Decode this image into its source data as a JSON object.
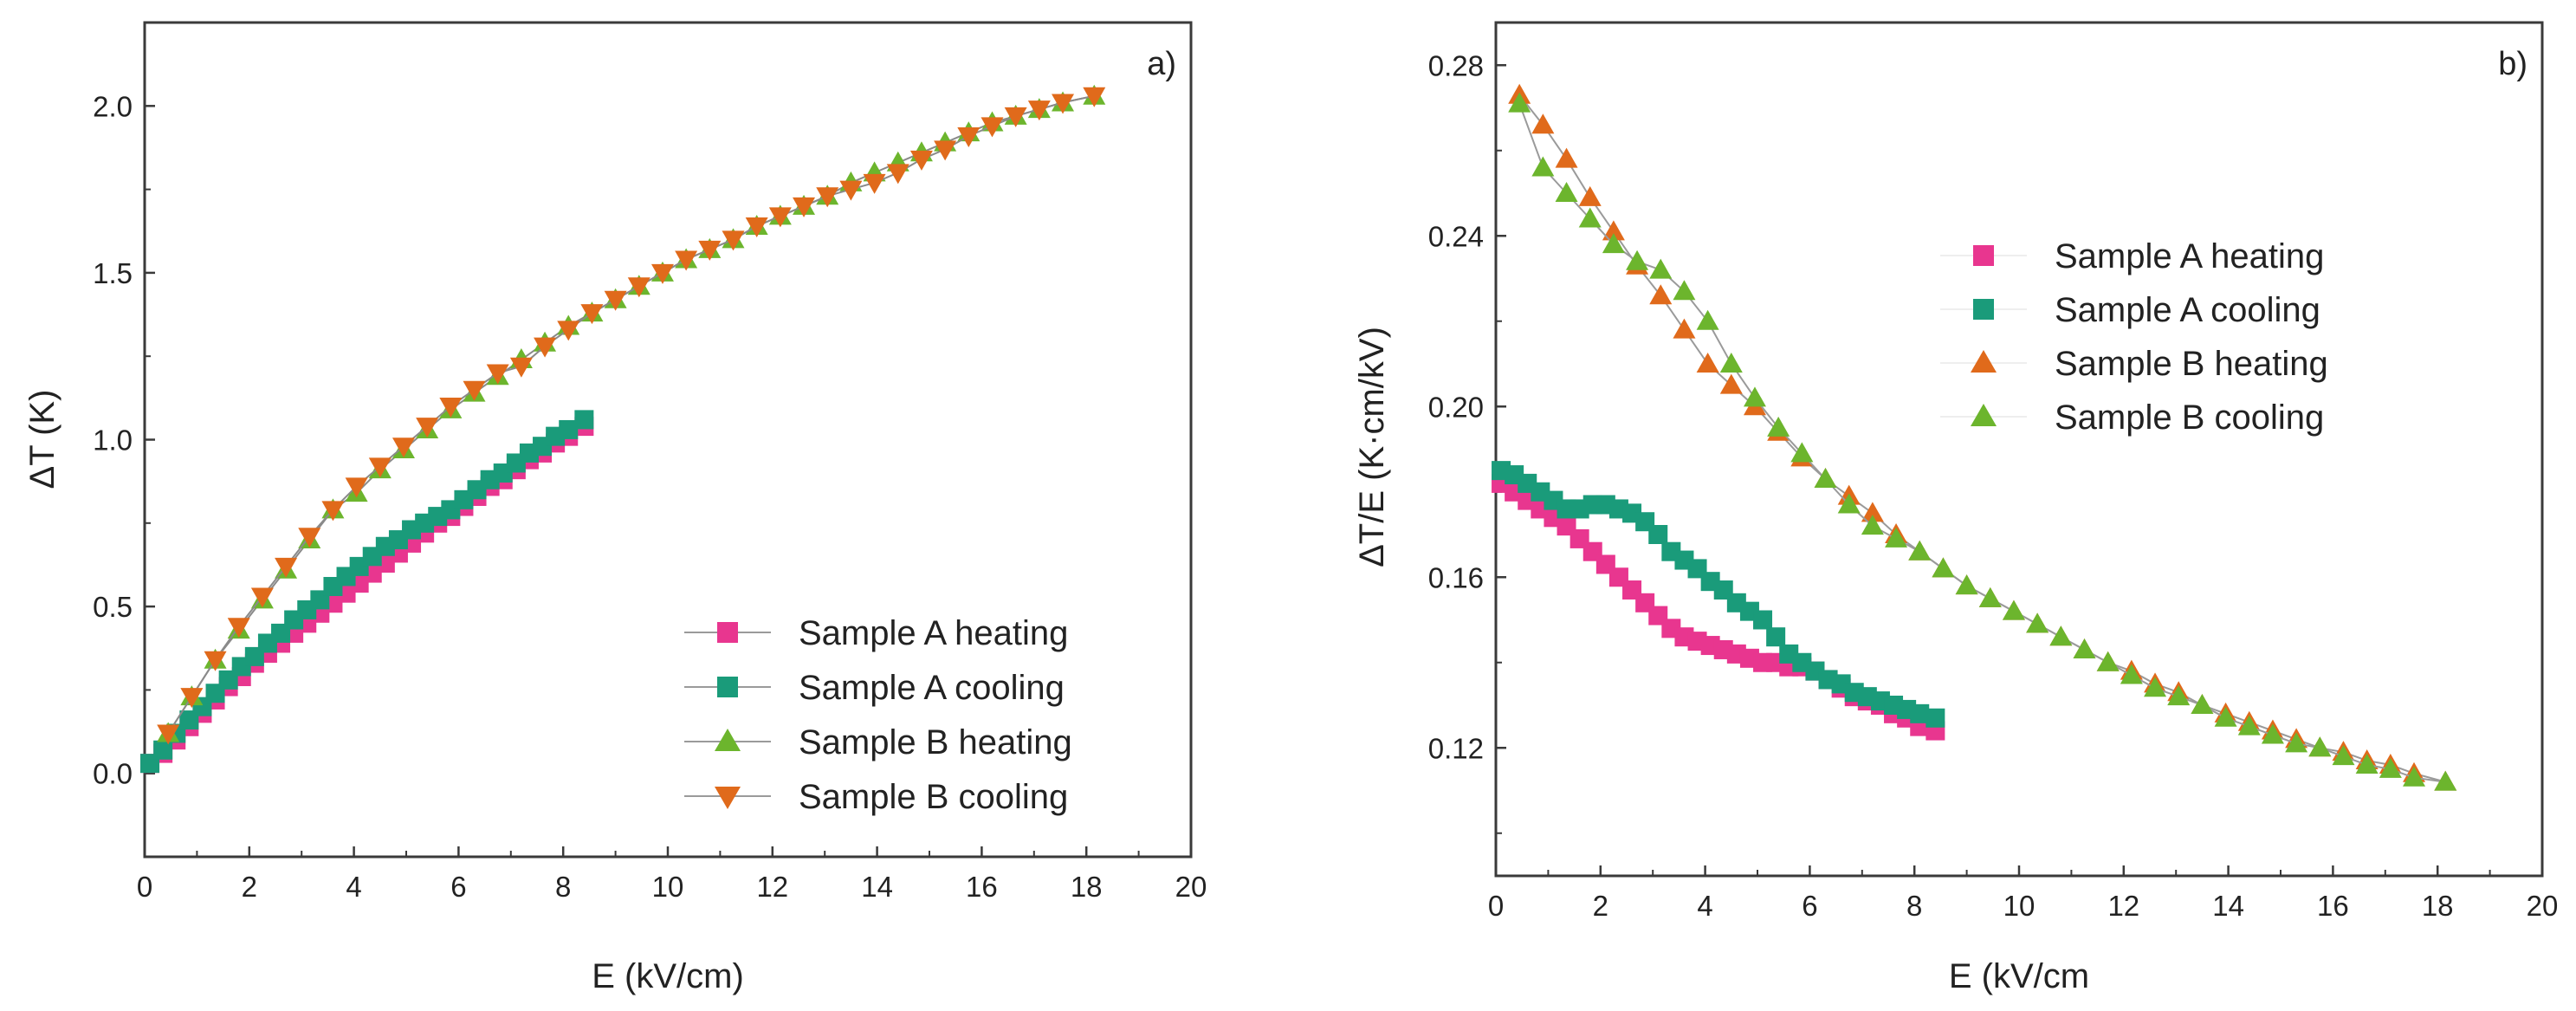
{
  "chart_data": [
    {
      "type": "scatter",
      "panel_label": "a)",
      "xlabel": "E (kV/cm)",
      "ylabel": "ΔT (K)",
      "xlim": [
        0,
        20
      ],
      "ylim": [
        -0.25,
        2.25
      ],
      "xticks": [
        "0",
        "2",
        "4",
        "6",
        "8",
        "10",
        "12",
        "14",
        "16",
        "18",
        "20"
      ],
      "yticks": [
        "0.0",
        "0.5",
        "1.0",
        "1.5",
        "2.0"
      ],
      "legend_position": "bottom-right",
      "series": [
        {
          "name": "Sample A heating",
          "color": "#e8368f",
          "marker": "square",
          "x": [
            0.1,
            0.35,
            0.6,
            0.85,
            1.1,
            1.35,
            1.6,
            1.85,
            2.1,
            2.35,
            2.6,
            2.85,
            3.1,
            3.35,
            3.6,
            3.85,
            4.1,
            4.35,
            4.6,
            4.85,
            5.1,
            5.35,
            5.6,
            5.85,
            6.1,
            6.35,
            6.6,
            6.85,
            7.1,
            7.35,
            7.6,
            7.85,
            8.1,
            8.4
          ],
          "y": [
            0.03,
            0.06,
            0.1,
            0.14,
            0.18,
            0.22,
            0.26,
            0.29,
            0.33,
            0.36,
            0.39,
            0.42,
            0.45,
            0.48,
            0.51,
            0.54,
            0.57,
            0.6,
            0.63,
            0.66,
            0.69,
            0.72,
            0.75,
            0.77,
            0.8,
            0.83,
            0.86,
            0.88,
            0.91,
            0.94,
            0.96,
            0.99,
            1.01,
            1.04
          ]
        },
        {
          "name": "Sample A cooling",
          "color": "#1a9b7a",
          "marker": "square",
          "x": [
            0.1,
            0.35,
            0.6,
            0.85,
            1.1,
            1.35,
            1.6,
            1.85,
            2.1,
            2.35,
            2.6,
            2.85,
            3.1,
            3.35,
            3.6,
            3.85,
            4.1,
            4.35,
            4.6,
            4.85,
            5.1,
            5.35,
            5.6,
            5.85,
            6.1,
            6.35,
            6.6,
            6.85,
            7.1,
            7.35,
            7.6,
            7.85,
            8.1,
            8.4
          ],
          "y": [
            0.03,
            0.07,
            0.12,
            0.16,
            0.2,
            0.24,
            0.28,
            0.32,
            0.35,
            0.39,
            0.42,
            0.46,
            0.49,
            0.52,
            0.56,
            0.59,
            0.62,
            0.65,
            0.68,
            0.7,
            0.73,
            0.75,
            0.77,
            0.79,
            0.82,
            0.85,
            0.88,
            0.9,
            0.93,
            0.96,
            0.98,
            1.01,
            1.03,
            1.06
          ]
        },
        {
          "name": "Sample B heating",
          "color": "#6cb52d",
          "marker": "triangle-up",
          "x": [
            0.45,
            0.9,
            1.35,
            1.8,
            2.25,
            2.7,
            3.15,
            3.6,
            4.05,
            4.5,
            4.95,
            5.4,
            5.85,
            6.3,
            6.75,
            7.2,
            7.65,
            8.1,
            8.55,
            9.0,
            9.45,
            9.9,
            10.35,
            10.8,
            11.25,
            11.7,
            12.15,
            12.6,
            13.05,
            13.5,
            13.95,
            14.4,
            14.85,
            15.3,
            15.75,
            16.2,
            16.65,
            17.1,
            17.55,
            18.15
          ],
          "y": [
            0.12,
            0.23,
            0.34,
            0.43,
            0.52,
            0.61,
            0.7,
            0.79,
            0.84,
            0.91,
            0.97,
            1.03,
            1.09,
            1.14,
            1.19,
            1.24,
            1.29,
            1.34,
            1.38,
            1.42,
            1.46,
            1.5,
            1.54,
            1.57,
            1.6,
            1.64,
            1.67,
            1.7,
            1.73,
            1.77,
            1.8,
            1.83,
            1.86,
            1.89,
            1.92,
            1.95,
            1.97,
            1.99,
            2.01,
            2.03
          ]
        },
        {
          "name": "Sample B cooling",
          "color": "#e06a1b",
          "marker": "triangle-down",
          "x": [
            0.45,
            0.9,
            1.35,
            1.8,
            2.25,
            2.7,
            3.15,
            3.6,
            4.05,
            4.5,
            4.95,
            5.4,
            5.85,
            6.3,
            6.75,
            7.2,
            7.65,
            8.1,
            8.55,
            9.0,
            9.45,
            9.9,
            10.35,
            10.8,
            11.25,
            11.7,
            12.15,
            12.6,
            13.05,
            13.5,
            13.95,
            14.4,
            14.85,
            15.3,
            15.75,
            16.2,
            16.65,
            17.1,
            17.55,
            18.15
          ],
          "y": [
            0.12,
            0.23,
            0.34,
            0.44,
            0.53,
            0.62,
            0.71,
            0.79,
            0.86,
            0.92,
            0.98,
            1.04,
            1.1,
            1.15,
            1.2,
            1.22,
            1.28,
            1.33,
            1.38,
            1.42,
            1.46,
            1.5,
            1.54,
            1.57,
            1.6,
            1.64,
            1.67,
            1.7,
            1.73,
            1.75,
            1.77,
            1.8,
            1.84,
            1.87,
            1.91,
            1.94,
            1.97,
            1.99,
            2.01,
            2.03
          ]
        }
      ]
    },
    {
      "type": "scatter",
      "panel_label": "b)",
      "xlabel": "E (kV/cm",
      "ylabel": "ΔT/E (K·cm/kV)",
      "xlim": [
        0,
        20
      ],
      "ylim": [
        0.09,
        0.29
      ],
      "xticks": [
        "0",
        "2",
        "4",
        "6",
        "8",
        "10",
        "12",
        "14",
        "16",
        "18",
        "20"
      ],
      "yticks": [
        "0.12",
        "0.16",
        "0.20",
        "0.24",
        "0.28"
      ],
      "legend_position": "top-center",
      "series": [
        {
          "name": "Sample A heating",
          "color": "#e8368f",
          "marker": "square",
          "x": [
            0.1,
            0.35,
            0.6,
            0.85,
            1.1,
            1.35,
            1.6,
            1.85,
            2.1,
            2.35,
            2.6,
            2.85,
            3.1,
            3.35,
            3.6,
            3.85,
            4.1,
            4.35,
            4.6,
            4.85,
            5.1,
            5.35,
            5.6,
            5.85,
            6.1,
            6.35,
            6.6,
            6.85,
            7.1,
            7.35,
            7.6,
            7.85,
            8.1,
            8.4
          ],
          "y": [
            0.182,
            0.18,
            0.178,
            0.176,
            0.174,
            0.172,
            0.169,
            0.166,
            0.163,
            0.16,
            0.157,
            0.154,
            0.151,
            0.148,
            0.146,
            0.145,
            0.144,
            0.143,
            0.142,
            0.141,
            0.14,
            0.14,
            0.139,
            0.139,
            0.138,
            0.136,
            0.134,
            0.132,
            0.131,
            0.13,
            0.128,
            0.127,
            0.125,
            0.124
          ]
        },
        {
          "name": "Sample A cooling",
          "color": "#1a9b7a",
          "marker": "square",
          "x": [
            0.1,
            0.35,
            0.6,
            0.85,
            1.1,
            1.35,
            1.6,
            1.85,
            2.1,
            2.35,
            2.6,
            2.85,
            3.1,
            3.35,
            3.6,
            3.85,
            4.1,
            4.35,
            4.6,
            4.85,
            5.1,
            5.35,
            5.6,
            5.85,
            6.1,
            6.35,
            6.6,
            6.85,
            7.1,
            7.35,
            7.6,
            7.85,
            8.1,
            8.4
          ],
          "y": [
            0.185,
            0.184,
            0.182,
            0.18,
            0.178,
            0.176,
            0.176,
            0.177,
            0.177,
            0.176,
            0.175,
            0.173,
            0.17,
            0.166,
            0.164,
            0.162,
            0.159,
            0.157,
            0.154,
            0.152,
            0.15,
            0.146,
            0.142,
            0.14,
            0.138,
            0.136,
            0.135,
            0.133,
            0.132,
            0.131,
            0.13,
            0.129,
            0.128,
            0.127
          ]
        },
        {
          "name": "Sample B heating",
          "color": "#e06a1b",
          "marker": "triangle-up",
          "x": [
            0.45,
            0.9,
            1.35,
            1.8,
            2.25,
            2.7,
            3.15,
            3.6,
            4.05,
            4.5,
            4.95,
            5.4,
            5.85,
            6.3,
            6.75,
            7.2,
            7.65,
            8.1,
            8.55,
            9.0,
            9.45,
            9.9,
            10.35,
            10.8,
            11.25,
            11.7,
            12.15,
            12.6,
            13.05,
            13.5,
            13.95,
            14.4,
            14.85,
            15.3,
            15.75,
            16.2,
            16.65,
            17.1,
            17.55,
            18.15
          ],
          "y": [
            0.273,
            0.266,
            0.258,
            0.249,
            0.241,
            0.233,
            0.226,
            0.218,
            0.21,
            0.205,
            0.2,
            0.194,
            0.188,
            0.183,
            0.179,
            0.175,
            0.17,
            0.166,
            0.162,
            0.158,
            0.155,
            0.152,
            0.149,
            0.146,
            0.143,
            0.14,
            0.138,
            0.135,
            0.133,
            0.13,
            0.128,
            0.126,
            0.124,
            0.122,
            0.12,
            0.119,
            0.117,
            0.116,
            0.114,
            0.112
          ]
        },
        {
          "name": "Sample B cooling",
          "color": "#6cb52d",
          "marker": "triangle-up",
          "x": [
            0.45,
            0.9,
            1.35,
            1.8,
            2.25,
            2.7,
            3.15,
            3.6,
            4.05,
            4.5,
            4.95,
            5.4,
            5.85,
            6.3,
            6.75,
            7.2,
            7.65,
            8.1,
            8.55,
            9.0,
            9.45,
            9.9,
            10.35,
            10.8,
            11.25,
            11.7,
            12.15,
            12.6,
            13.05,
            13.5,
            13.95,
            14.4,
            14.85,
            15.3,
            15.75,
            16.2,
            16.65,
            17.1,
            17.55,
            18.15
          ],
          "y": [
            0.271,
            0.256,
            0.25,
            0.244,
            0.238,
            0.234,
            0.232,
            0.227,
            0.22,
            0.21,
            0.202,
            0.195,
            0.189,
            0.183,
            0.177,
            0.172,
            0.169,
            0.166,
            0.162,
            0.158,
            0.155,
            0.152,
            0.149,
            0.146,
            0.143,
            0.14,
            0.137,
            0.134,
            0.132,
            0.13,
            0.127,
            0.125,
            0.123,
            0.121,
            0.12,
            0.118,
            0.116,
            0.115,
            0.113,
            0.112
          ]
        }
      ]
    }
  ]
}
